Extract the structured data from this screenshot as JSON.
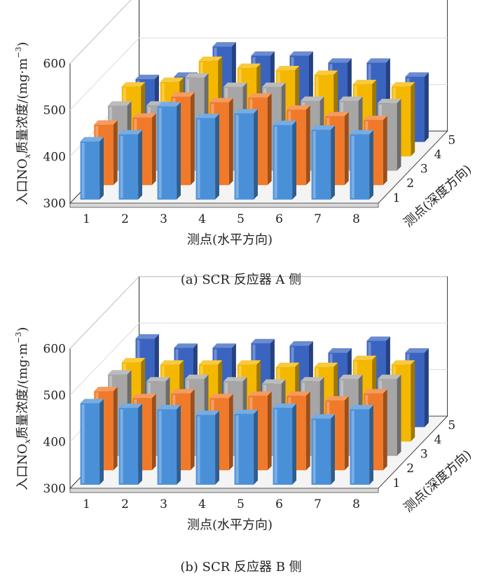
{
  "figure": {
    "caption_a": "(a)  SCR 反应器 A 侧",
    "caption_b": "(b)  SCR 反应器 B 侧"
  },
  "chart_data": [
    {
      "id": "a",
      "type": "bar3d",
      "title": "",
      "ylabel": "入口NOx质量浓度/(mg·m⁻³)",
      "ylabel_parts": [
        "入口NO",
        "x",
        "质量浓度/(mg·m",
        "−3",
        ")"
      ],
      "xlabel": "测点(水平方向)",
      "zlabel": "测点(深度方向)",
      "ylim": [
        300,
        600
      ],
      "yticks": [
        300,
        400,
        500,
        600
      ],
      "categories": [
        "1",
        "2",
        "3",
        "4",
        "5",
        "6",
        "7",
        "8"
      ],
      "depth_categories": [
        "1",
        "2",
        "3",
        "4",
        "5"
      ],
      "colors": [
        "#4a90d9",
        "#f07a2a",
        "#a6a6a6",
        "#f5b800",
        "#3a64c0"
      ],
      "series": [
        {
          "values": [
            425,
            440,
            500,
            475,
            485,
            460,
            450,
            440
          ]
        },
        {
          "values": [
            430,
            445,
            490,
            478,
            488,
            462,
            448,
            440
          ]
        },
        {
          "values": [
            440,
            440,
            500,
            480,
            480,
            450,
            450,
            445
          ]
        },
        {
          "values": [
            450,
            460,
            505,
            490,
            485,
            475,
            455,
            450
          ]
        },
        {
          "values": [
            435,
            440,
            505,
            485,
            485,
            470,
            470,
            440
          ]
        }
      ]
    },
    {
      "id": "b",
      "type": "bar3d",
      "title": "",
      "ylabel": "入口NOx质量浓度/(mg·m⁻³)",
      "ylabel_parts": [
        "入口NO",
        "x",
        "质量浓度/(mg·m",
        "−3",
        ")"
      ],
      "xlabel": "测点(水平方向)",
      "zlabel": "测点(深度方向)",
      "ylim": [
        300,
        600
      ],
      "yticks": [
        300,
        400,
        500,
        600
      ],
      "categories": [
        "1",
        "2",
        "3",
        "4",
        "5",
        "6",
        "7",
        "8"
      ],
      "depth_categories": [
        "1",
        "2",
        "3",
        "4",
        "5"
      ],
      "colors": [
        "#4a90d9",
        "#f07a2a",
        "#a6a6a6",
        "#f5b800",
        "#3a64c0"
      ],
      "series": [
        {
          "values": [
            475,
            465,
            462,
            450,
            452,
            465,
            442,
            462
          ]
        },
        {
          "values": [
            470,
            455,
            465,
            455,
            460,
            460,
            450,
            465
          ]
        },
        {
          "values": [
            475,
            460,
            465,
            460,
            455,
            460,
            465,
            465
          ]
        },
        {
          "values": [
            470,
            465,
            465,
            465,
            460,
            460,
            475,
            465
          ]
        },
        {
          "values": [
            490,
            470,
            470,
            480,
            475,
            460,
            485,
            460
          ]
        }
      ]
    }
  ]
}
